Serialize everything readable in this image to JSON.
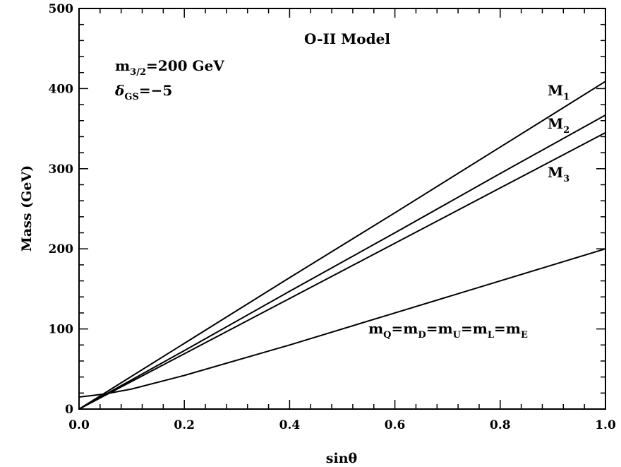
{
  "chart_data": {
    "type": "line",
    "title": "O-II Model",
    "xlabel": "sinθ",
    "ylabel": "Mass (GeV)",
    "xlim": [
      0.0,
      1.0
    ],
    "ylim": [
      0,
      500
    ],
    "grid": false,
    "x_ticks": [
      "0.0",
      "0.2",
      "0.4",
      "0.6",
      "0.8",
      "1.0"
    ],
    "y_ticks": [
      "0",
      "100",
      "200",
      "300",
      "400",
      "500"
    ],
    "x_tick_values": [
      0.0,
      0.2,
      0.4,
      0.6,
      0.8,
      1.0
    ],
    "y_tick_values": [
      0,
      100,
      200,
      300,
      400,
      500
    ],
    "annotations": {
      "m32": {
        "base": "m",
        "sub": "3/2",
        "rest": "=200 GeV"
      },
      "delta": {
        "base": "δ",
        "sub": "GS",
        "rest": "=−5"
      }
    },
    "series": [
      {
        "name": "M1",
        "label_base": "M",
        "label_sub": "1",
        "x": [
          0.0,
          0.2,
          0.4,
          0.6,
          0.8,
          1.0
        ],
        "y": [
          0,
          82,
          164,
          245,
          327,
          409
        ]
      },
      {
        "name": "M2",
        "label_base": "M",
        "label_sub": "2",
        "x": [
          0.0,
          0.2,
          0.4,
          0.6,
          0.8,
          1.0
        ],
        "y": [
          0,
          73,
          147,
          220,
          294,
          367
        ]
      },
      {
        "name": "M3",
        "label_base": "M",
        "label_sub": "3",
        "x": [
          0.0,
          0.2,
          0.4,
          0.6,
          0.8,
          1.0
        ],
        "y": [
          0,
          69,
          138,
          207,
          276,
          345
        ]
      },
      {
        "name": "mQ=mD=mU=mL=mE",
        "label_parts": [
          {
            "base": "m",
            "sub": "Q"
          },
          {
            "base": "=m",
            "sub": "D"
          },
          {
            "base": "=m",
            "sub": "U"
          },
          {
            "base": "=m",
            "sub": "L"
          },
          {
            "base": "=m",
            "sub": "E"
          }
        ],
        "x": [
          0.0,
          0.02,
          0.05,
          0.1,
          0.2,
          0.4,
          0.6,
          0.8,
          1.0
        ],
        "y": [
          15,
          16.5,
          19,
          25,
          42,
          80,
          120,
          160,
          200
        ]
      }
    ]
  }
}
